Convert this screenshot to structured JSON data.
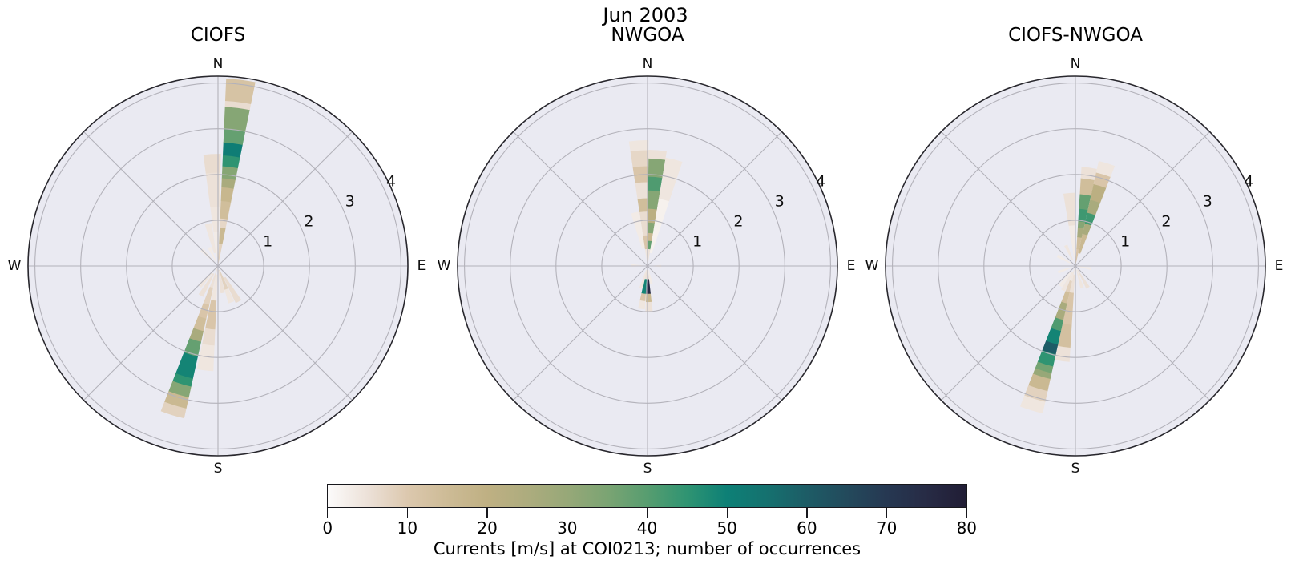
{
  "figure": {
    "title": "Jun 2003"
  },
  "chart_data": {
    "type": "polar-bar",
    "suptitle": "Jun 2003",
    "description": "Three polar rose histograms of current direction/speed; stacked radial segments colored by number of occurrences.",
    "axes": {
      "r_ticks": [
        1,
        2,
        3,
        4
      ],
      "r_max": 4.15,
      "theta_grid_step_deg": 45,
      "petal_width_deg": 9,
      "cardinal_labels": [
        "N",
        "E",
        "S",
        "W"
      ],
      "background_color": "#eaeaf2",
      "grid_color": "#b3b2ba",
      "boundary_color": "#28272d"
    },
    "colorbar": {
      "label": "Currents [m/s] at COI0213; number of occurrences",
      "orientation": "horizontal",
      "vmin": 0,
      "vmax": 80,
      "ticks": [
        0,
        10,
        20,
        30,
        40,
        50,
        60,
        70,
        80
      ],
      "stops": [
        [
          0,
          "#fcfbfb"
        ],
        [
          5,
          "#ece1d8"
        ],
        [
          10,
          "#dcc8ae"
        ],
        [
          15,
          "#cdbb96"
        ],
        [
          20,
          "#bfb083"
        ],
        [
          25,
          "#adac7e"
        ],
        [
          30,
          "#97a878"
        ],
        [
          35,
          "#7ba473"
        ],
        [
          40,
          "#579d70"
        ],
        [
          45,
          "#2f9472"
        ],
        [
          50,
          "#0d8076"
        ],
        [
          55,
          "#15716f"
        ],
        [
          60,
          "#1d5c66"
        ],
        [
          65,
          "#234a5c"
        ],
        [
          70,
          "#263852"
        ],
        [
          75,
          "#272b45"
        ],
        [
          80,
          "#211d35"
        ]
      ]
    },
    "plots": [
      {
        "title": "CIOFS",
        "petals": [
          {
            "angle_deg": 7,
            "segments": [
              [
                0,
                0.5,
                8
              ],
              [
                0.5,
                0.85,
                16
              ],
              [
                0.85,
                1.05,
                7
              ],
              [
                1.05,
                1.43,
                14
              ],
              [
                1.43,
                1.73,
                17
              ],
              [
                1.73,
                1.93,
                26
              ],
              [
                1.93,
                2.19,
                33
              ],
              [
                2.19,
                2.43,
                45
              ],
              [
                2.43,
                2.71,
                51
              ],
              [
                2.71,
                3.01,
                38
              ],
              [
                3.01,
                3.49,
                33
              ],
              [
                3.49,
                3.62,
                6
              ],
              [
                3.62,
                4.1,
                12
              ]
            ]
          },
          {
            "angle_deg": -3,
            "segments": [
              [
                0.2,
                0.75,
                3
              ],
              [
                0.75,
                1.3,
                4
              ],
              [
                1.3,
                2.05,
                5
              ],
              [
                2.05,
                2.45,
                6
              ]
            ]
          },
          {
            "angle_deg": -13,
            "segments": [
              [
                0.3,
                0.95,
                4
              ]
            ]
          },
          {
            "angle_deg": 150,
            "segments": [
              [
                0.3,
                0.9,
                6
              ]
            ]
          },
          {
            "angle_deg": 160,
            "segments": [
              [
                0.1,
                0.55,
                8
              ],
              [
                0.55,
                0.85,
                4
              ]
            ]
          },
          {
            "angle_deg": 170,
            "segments": [
              [
                0.1,
                0.6,
                5
              ]
            ]
          },
          {
            "angle_deg": 187,
            "segments": [
              [
                0.2,
                0.77,
                4
              ],
              [
                0.77,
                1.4,
                11
              ],
              [
                1.4,
                1.75,
                6
              ],
              [
                1.75,
                2.3,
                4
              ]
            ]
          },
          {
            "angle_deg": 197,
            "segments": [
              [
                0,
                0.5,
                5
              ],
              [
                0.5,
                0.88,
                8
              ],
              [
                0.88,
                1.19,
                11
              ],
              [
                1.19,
                1.47,
                14
              ],
              [
                1.47,
                1.71,
                26
              ],
              [
                1.71,
                2.04,
                38
              ],
              [
                2.04,
                2.53,
                49
              ],
              [
                2.53,
                2.71,
                45
              ],
              [
                2.71,
                2.95,
                33
              ],
              [
                2.95,
                3.2,
                16
              ],
              [
                3.2,
                3.41,
                8
              ]
            ]
          },
          {
            "angle_deg": 210,
            "segments": [
              [
                0.2,
                0.75,
                5
              ]
            ]
          },
          {
            "angle_deg": 222,
            "segments": [
              [
                0.2,
                0.6,
                4
              ]
            ]
          },
          {
            "angle_deg": 315,
            "segments": [
              [
                0.1,
                0.5,
                3
              ]
            ]
          },
          {
            "angle_deg": 335,
            "segments": [
              [
                0.1,
                0.45,
                3
              ]
            ]
          }
        ]
      },
      {
        "title": "NWGOA",
        "petals": [
          {
            "angle_deg": 5,
            "segments": [
              [
                0.05,
                0.38,
                5
              ],
              [
                0.38,
                0.56,
                38
              ],
              [
                0.56,
                0.73,
                16
              ],
              [
                0.73,
                0.96,
                33
              ],
              [
                0.96,
                1.26,
                21
              ],
              [
                1.26,
                1.66,
                33
              ],
              [
                1.66,
                1.96,
                41
              ],
              [
                1.96,
                2.36,
                33
              ],
              [
                2.36,
                2.54,
                5
              ]
            ]
          },
          {
            "angle_deg": -4,
            "segments": [
              [
                0.05,
                0.38,
                4
              ],
              [
                0.38,
                0.68,
                11
              ],
              [
                0.68,
                1.2,
                6
              ],
              [
                1.2,
                1.49,
                14
              ],
              [
                1.49,
                1.84,
                5
              ],
              [
                1.84,
                2.19,
                11
              ],
              [
                2.19,
                2.54,
                7
              ],
              [
                2.54,
                2.75,
                4
              ]
            ]
          },
          {
            "angle_deg": 14,
            "segments": [
              [
                0.3,
                1.5,
                2
              ],
              [
                1.5,
                2.4,
                4
              ]
            ]
          },
          {
            "angle_deg": -13,
            "segments": [
              [
                0.4,
                1.2,
                3
              ]
            ]
          },
          {
            "angle_deg": 178,
            "segments": [
              [
                0.1,
                0.3,
                7
              ],
              [
                0.3,
                0.62,
                75
              ],
              [
                0.62,
                0.8,
                16
              ],
              [
                0.8,
                1.0,
                5
              ]
            ]
          },
          {
            "angle_deg": 188,
            "segments": [
              [
                0.1,
                0.3,
                5
              ],
              [
                0.3,
                0.62,
                49
              ],
              [
                0.62,
                0.78,
                11
              ],
              [
                0.78,
                0.95,
                4
              ]
            ]
          },
          {
            "angle_deg": 196,
            "segments": [
              [
                0.1,
                0.5,
                4
              ]
            ]
          },
          {
            "angle_deg": 168,
            "segments": [
              [
                0.1,
                0.4,
                3
              ]
            ]
          },
          {
            "angle_deg": 90,
            "segments": [
              [
                0.05,
                0.3,
                3
              ]
            ]
          },
          {
            "angle_deg": 272,
            "segments": [
              [
                0.05,
                0.35,
                3
              ]
            ]
          }
        ]
      },
      {
        "title": "CIOFS-NWGOA",
        "petals": [
          {
            "angle_deg": 8,
            "segments": [
              [
                0.05,
                0.38,
                11
              ],
              [
                0.38,
                0.64,
                14
              ],
              [
                0.64,
                0.85,
                26
              ],
              [
                0.85,
                0.99,
                33
              ],
              [
                0.99,
                1.26,
                43
              ],
              [
                1.26,
                1.58,
                38
              ],
              [
                1.58,
                1.93,
                14
              ],
              [
                1.93,
                2.17,
                5
              ]
            ]
          },
          {
            "angle_deg": 17,
            "segments": [
              [
                0.3,
                0.73,
                16
              ],
              [
                0.73,
                0.96,
                26
              ],
              [
                0.96,
                1.2,
                43
              ],
              [
                1.2,
                1.49,
                26
              ],
              [
                1.49,
                1.84,
                21
              ],
              [
                1.84,
                2.1,
                11
              ],
              [
                2.1,
                2.35,
                4
              ]
            ]
          },
          {
            "angle_deg": -5,
            "segments": [
              [
                0.2,
                0.9,
                3
              ],
              [
                0.9,
                1.6,
                5
              ]
            ]
          },
          {
            "angle_deg": 150,
            "segments": [
              [
                0.1,
                0.55,
                5
              ]
            ]
          },
          {
            "angle_deg": 163,
            "segments": [
              [
                0.1,
                0.5,
                4
              ]
            ]
          },
          {
            "angle_deg": 188,
            "segments": [
              [
                0.2,
                0.6,
                5
              ],
              [
                0.6,
                1.3,
                11
              ],
              [
                1.3,
                1.8,
                13
              ],
              [
                1.8,
                2.1,
                5
              ]
            ]
          },
          {
            "angle_deg": 197,
            "segments": [
              [
                0,
                0.35,
                4
              ],
              [
                0.35,
                0.6,
                8
              ],
              [
                0.6,
                0.85,
                14
              ],
              [
                0.85,
                1.22,
                26
              ],
              [
                1.22,
                1.47,
                41
              ],
              [
                1.47,
                1.77,
                49
              ],
              [
                1.77,
                1.99,
                60
              ],
              [
                1.99,
                2.26,
                45
              ],
              [
                2.26,
                2.41,
                36
              ],
              [
                2.41,
                2.54,
                30
              ],
              [
                2.54,
                2.81,
                16
              ],
              [
                2.81,
                3.05,
                8
              ],
              [
                3.05,
                3.3,
                4
              ]
            ]
          },
          {
            "angle_deg": 207,
            "segments": [
              [
                0.15,
                0.6,
                4
              ]
            ]
          },
          {
            "angle_deg": 217,
            "segments": [
              [
                0.2,
                0.55,
                3
              ]
            ]
          },
          {
            "angle_deg": 250,
            "segments": [
              [
                0.1,
                0.4,
                3
              ]
            ]
          },
          {
            "angle_deg": 300,
            "segments": [
              [
                0.1,
                0.45,
                3
              ]
            ]
          },
          {
            "angle_deg": 335,
            "segments": [
              [
                0.15,
                0.5,
                4
              ]
            ]
          },
          {
            "angle_deg": 100,
            "segments": [
              [
                0.05,
                0.35,
                3
              ]
            ]
          }
        ]
      }
    ]
  }
}
